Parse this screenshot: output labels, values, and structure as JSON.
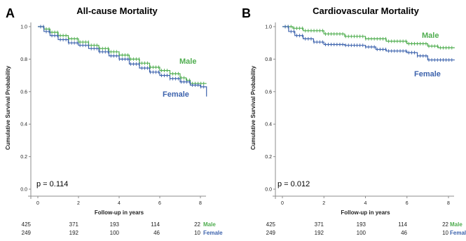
{
  "chart_data": [
    {
      "type": "line",
      "subtype": "kaplan-meier",
      "panel_letter": "A",
      "title": "All-cause Mortality",
      "xlabel": "Follow-up in years",
      "ylabel": "Cumulative Survival Probability",
      "x_ticks": [
        0,
        2,
        4,
        6,
        8
      ],
      "y_ticks": [
        "0.0",
        "0.2",
        "0.4",
        "0.6",
        "0.8",
        "1.0"
      ],
      "xlim": [
        0,
        8.3
      ],
      "ylim": [
        0,
        1.0
      ],
      "annotation": "p = 0.114",
      "series": [
        {
          "name": "Male",
          "color": "#4fad4f",
          "x": [
            0,
            0.3,
            0.6,
            1.0,
            1.5,
            2.0,
            2.5,
            3.0,
            3.5,
            4.0,
            4.5,
            5.0,
            5.5,
            6.0,
            6.5,
            7.0,
            7.3,
            7.5,
            8.3
          ],
          "y": [
            1.0,
            0.985,
            0.965,
            0.945,
            0.925,
            0.905,
            0.885,
            0.865,
            0.845,
            0.825,
            0.8,
            0.775,
            0.75,
            0.73,
            0.71,
            0.685,
            0.67,
            0.65,
            0.65
          ]
        },
        {
          "name": "Female",
          "color": "#3d63ad",
          "x": [
            0,
            0.3,
            0.6,
            1.0,
            1.5,
            2.0,
            2.5,
            3.0,
            3.5,
            4.0,
            4.5,
            5.0,
            5.5,
            6.0,
            6.5,
            7.0,
            7.5,
            8.0,
            8.3
          ],
          "y": [
            1.0,
            0.97,
            0.945,
            0.92,
            0.9,
            0.885,
            0.865,
            0.845,
            0.82,
            0.8,
            0.77,
            0.745,
            0.72,
            0.7,
            0.68,
            0.66,
            0.64,
            0.63,
            0.57
          ]
        }
      ],
      "risk_table": [
        {
          "name": "Male",
          "values": [
            425,
            371,
            193,
            114,
            22
          ]
        },
        {
          "name": "Female",
          "values": [
            249,
            192,
            100,
            46,
            10
          ]
        }
      ]
    },
    {
      "type": "line",
      "subtype": "kaplan-meier",
      "panel_letter": "B",
      "title": "Cardiovascular Mortality",
      "xlabel": "Follow-up in years",
      "ylabel": "Cumulative Survival Probability",
      "x_ticks": [
        0,
        2,
        4,
        6,
        8
      ],
      "y_ticks": [
        "0.0",
        "0.2",
        "0.4",
        "0.6",
        "0.8",
        "1.0"
      ],
      "xlim": [
        0,
        8.3
      ],
      "ylim": [
        0,
        1.0
      ],
      "annotation": "p = 0.012",
      "series": [
        {
          "name": "Male",
          "color": "#4fad4f",
          "x": [
            0,
            0.5,
            1.0,
            2.0,
            3.0,
            4.0,
            5.0,
            6.0,
            7.0,
            7.5,
            8.3
          ],
          "y": [
            1.0,
            0.99,
            0.975,
            0.955,
            0.94,
            0.925,
            0.91,
            0.895,
            0.88,
            0.87,
            0.87
          ]
        },
        {
          "name": "Female",
          "color": "#3d63ad",
          "x": [
            0,
            0.3,
            0.6,
            1.0,
            1.5,
            2.0,
            3.0,
            4.0,
            4.5,
            5.0,
            6.0,
            6.5,
            7.0,
            8.3
          ],
          "y": [
            1.0,
            0.97,
            0.945,
            0.925,
            0.905,
            0.89,
            0.885,
            0.875,
            0.86,
            0.85,
            0.84,
            0.82,
            0.795,
            0.795
          ]
        }
      ],
      "risk_table": [
        {
          "name": "Male",
          "values": [
            425,
            371,
            193,
            114,
            22
          ]
        },
        {
          "name": "Female",
          "values": [
            249,
            192,
            100,
            46,
            10
          ]
        }
      ]
    }
  ]
}
